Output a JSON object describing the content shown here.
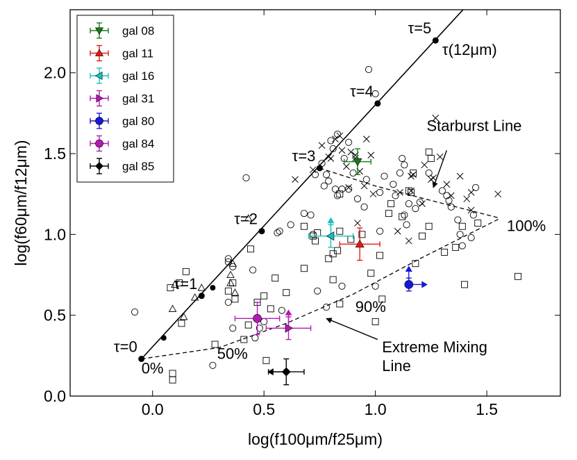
{
  "chart_data": {
    "type": "scatter",
    "xlabel": "log(f100μm/f25μm)",
    "ylabel": "log(f60μm/f12μm)",
    "xlim": [
      -0.37,
      1.83
    ],
    "ylim": [
      0.0,
      2.39
    ],
    "xticks": [
      0.0,
      0.5,
      1.0,
      1.5
    ],
    "xtick_labels": [
      "0.0",
      "0.5",
      "1.0",
      "1.5"
    ],
    "yticks": [
      0.0,
      0.5,
      1.0,
      1.5,
      2.0
    ],
    "ytick_labels": [
      "0.0",
      "0.5",
      "1.0",
      "1.5",
      "2.0"
    ],
    "legend_position": "top-left",
    "tau_line": {
      "name": "τ(12μm)",
      "points": [
        {
          "x": -0.05,
          "y": 0.23,
          "label": "τ=0"
        },
        {
          "x": 0.22,
          "y": 0.62,
          "label": "τ=1"
        },
        {
          "x": 0.49,
          "y": 1.02,
          "label": "τ=2"
        },
        {
          "x": 0.75,
          "y": 1.41,
          "label": "τ=3"
        },
        {
          "x": 1.01,
          "y": 1.81,
          "label": "τ=4"
        },
        {
          "x": 1.27,
          "y": 2.2,
          "label": "τ=5"
        }
      ],
      "extended_end": {
        "x": 1.42,
        "y": 2.43
      },
      "extra_dots": [
        {
          "x": 0.05,
          "y": 0.36
        },
        {
          "x": 0.27,
          "y": 0.67
        }
      ]
    },
    "mixing_curves": {
      "starburst_line": [
        [
          0.75,
          1.41
        ],
        [
          1.0,
          1.3
        ],
        [
          1.25,
          1.21
        ],
        [
          1.56,
          1.1
        ]
      ],
      "extreme_mixing_line": [
        [
          -0.05,
          0.23
        ],
        [
          0.3,
          0.3
        ],
        [
          0.6,
          0.45
        ],
        [
          0.9,
          0.63
        ],
        [
          1.2,
          0.85
        ],
        [
          1.56,
          1.1
        ]
      ]
    },
    "series": [
      {
        "name": "gal 08",
        "color": "#1a7a1a",
        "marker": "triangle-down",
        "x": 0.92,
        "y": 1.45,
        "xerr": 0.06,
        "yerr": 0.08
      },
      {
        "name": "gal 11",
        "color": "#e81818",
        "marker": "triangle-up",
        "x": 0.93,
        "y": 0.94,
        "xerr": 0.09,
        "yerr": 0.1
      },
      {
        "name": "gal 16",
        "color": "#19c0c0",
        "marker": "triangle-left",
        "x": 0.8,
        "y": 0.99,
        "xerr": 0.1,
        "yerr": 0.07,
        "arrows": [
          "up"
        ]
      },
      {
        "name": "gal 31",
        "color": "#b51ab5",
        "marker": "triangle-right",
        "x": 0.61,
        "y": 0.42,
        "xerr": 0.1,
        "yerr": 0.07,
        "arrows": [
          "up"
        ]
      },
      {
        "name": "gal 80",
        "color": "#1818d8",
        "marker": "circle",
        "x": 1.15,
        "y": 0.69,
        "xerr": 0.0,
        "yerr": 0.04,
        "arrows": [
          "up",
          "right"
        ]
      },
      {
        "name": "gal 84",
        "color": "#b51ab5",
        "marker": "circle",
        "x": 0.47,
        "y": 0.48,
        "xerr": 0.1,
        "yerr": 0.1
      },
      {
        "name": "gal 85",
        "color": "#000000",
        "marker": "diamond",
        "x": 0.6,
        "y": 0.15,
        "xerr": 0.08,
        "yerr": 0.08,
        "arrows": [
          "left"
        ]
      }
    ],
    "background_samples": [
      {
        "name": "circles",
        "marker": "open-circle",
        "points": [
          [
            -0.08,
            0.52
          ],
          [
            0.34,
            0.85
          ],
          [
            0.34,
            0.83
          ],
          [
            0.36,
            0.8
          ],
          [
            0.42,
            1.35
          ],
          [
            0.46,
            0.36
          ],
          [
            0.48,
            0.42
          ],
          [
            0.5,
            0.46
          ],
          [
            0.45,
            0.78
          ],
          [
            0.56,
            1.01
          ],
          [
            0.57,
            1.02
          ],
          [
            0.62,
            1.06
          ],
          [
            0.68,
            1.13
          ],
          [
            0.71,
            1.12
          ],
          [
            0.72,
            1.0
          ],
          [
            0.73,
            1.37
          ],
          [
            0.76,
            1.44
          ],
          [
            0.81,
            1.53
          ],
          [
            0.8,
            1.58
          ],
          [
            0.83,
            1.62
          ],
          [
            0.86,
            1.47
          ],
          [
            0.88,
            1.57
          ],
          [
            0.78,
            1.37
          ],
          [
            0.82,
            1.28
          ],
          [
            0.83,
            1.24
          ],
          [
            0.77,
            1.3
          ],
          [
            0.79,
            1.33
          ],
          [
            0.85,
            1.28
          ],
          [
            0.9,
            1.38
          ],
          [
            0.96,
            1.34
          ],
          [
            1.02,
            1.26
          ],
          [
            1.04,
            1.36
          ],
          [
            0.88,
            1.28
          ],
          [
            0.92,
            1.22
          ],
          [
            0.95,
            1.17
          ],
          [
            0.97,
            2.02
          ],
          [
            1.0,
            1.87
          ],
          [
            1.09,
            1.24
          ],
          [
            1.08,
            1.31
          ],
          [
            1.11,
            1.38
          ],
          [
            1.13,
            1.43
          ],
          [
            1.12,
            1.47
          ],
          [
            1.15,
            1.19
          ],
          [
            1.13,
            1.12
          ],
          [
            1.14,
            1.06
          ],
          [
            1.18,
            1.16
          ],
          [
            1.2,
            1.2
          ],
          [
            1.24,
            1.38
          ],
          [
            1.3,
            1.27
          ],
          [
            1.32,
            1.24
          ],
          [
            1.33,
            1.21
          ],
          [
            1.34,
            1.17
          ],
          [
            1.37,
            1.09
          ],
          [
            1.38,
            1.0
          ],
          [
            1.39,
            0.93
          ],
          [
            1.43,
            0.98
          ],
          [
            1.45,
            1.29
          ],
          [
            1.44,
            1.12
          ],
          [
            1.02,
            1.02
          ],
          [
            1.0,
            0.68
          ],
          [
            0.85,
            0.68
          ],
          [
            0.78,
            0.55
          ],
          [
            0.74,
            0.65
          ],
          [
            0.58,
            0.53
          ],
          [
            0.27,
            0.19
          ],
          [
            0.34,
            0.58
          ],
          [
            0.36,
            0.42
          ]
        ]
      },
      {
        "name": "squares",
        "marker": "open-square",
        "points": [
          [
            0.09,
            0.1
          ],
          [
            0.09,
            0.14
          ],
          [
            0.08,
            0.67
          ],
          [
            0.15,
            0.77
          ],
          [
            0.12,
            0.7
          ],
          [
            0.13,
            0.45
          ],
          [
            0.28,
            0.32
          ],
          [
            0.34,
            0.65
          ],
          [
            0.36,
            0.7
          ],
          [
            0.37,
            0.6
          ],
          [
            0.41,
            0.35
          ],
          [
            0.43,
            0.44
          ],
          [
            0.47,
            0.58
          ],
          [
            0.5,
            0.62
          ],
          [
            0.53,
            0.54
          ],
          [
            0.51,
            0.22
          ],
          [
            0.55,
            0.73
          ],
          [
            0.6,
            0.64
          ],
          [
            0.68,
            0.79
          ],
          [
            0.68,
            1.05
          ],
          [
            0.72,
            0.99
          ],
          [
            0.73,
            0.96
          ],
          [
            0.74,
            1.01
          ],
          [
            0.79,
            0.85
          ],
          [
            0.81,
            0.88
          ],
          [
            0.83,
            0.9
          ],
          [
            0.84,
            1.02
          ],
          [
            0.81,
            0.72
          ],
          [
            0.84,
            0.57
          ],
          [
            0.89,
            0.97
          ],
          [
            0.94,
            1.0
          ],
          [
            0.98,
            0.76
          ],
          [
            1.0,
            0.46
          ],
          [
            1.03,
            0.6
          ],
          [
            1.02,
            0.87
          ],
          [
            1.06,
            1.13
          ],
          [
            1.07,
            1.19
          ],
          [
            1.12,
            1.11
          ],
          [
            1.15,
            1.27
          ],
          [
            1.16,
            1.26
          ],
          [
            1.24,
            1.51
          ],
          [
            1.25,
            1.47
          ],
          [
            1.18,
            0.82
          ],
          [
            1.21,
            0.99
          ],
          [
            1.24,
            1.05
          ],
          [
            1.31,
            0.89
          ],
          [
            1.36,
            0.92
          ],
          [
            1.4,
            0.69
          ],
          [
            1.46,
            1.07
          ],
          [
            1.39,
            1.05
          ],
          [
            1.64,
            0.74
          ],
          [
            1.17,
            1.38
          ],
          [
            0.44,
            0.91
          ],
          [
            0.84,
            1.25
          ]
        ]
      },
      {
        "name": "triangles",
        "marker": "open-triangle",
        "points": [
          [
            0.09,
            0.54
          ],
          [
            0.1,
            0.69
          ],
          [
            0.14,
            0.49
          ],
          [
            0.19,
            0.61
          ],
          [
            0.35,
            0.75
          ],
          [
            0.35,
            0.7
          ],
          [
            0.37,
            0.64
          ],
          [
            0.43,
            1.1
          ],
          [
            0.36,
            0.82
          ],
          [
            0.22,
            0.67
          ]
        ]
      },
      {
        "name": "crosses",
        "marker": "cross",
        "points": [
          [
            0.64,
            1.34
          ],
          [
            0.79,
            1.48
          ],
          [
            0.82,
            1.59
          ],
          [
            0.84,
            1.61
          ],
          [
            0.8,
            1.47
          ],
          [
            0.76,
            1.55
          ],
          [
            0.72,
            1.4
          ],
          [
            0.85,
            1.52
          ],
          [
            0.87,
            1.42
          ],
          [
            0.88,
            1.29
          ],
          [
            0.89,
            1.51
          ],
          [
            0.91,
            1.49
          ],
          [
            0.91,
            1.47
          ],
          [
            0.96,
            1.59
          ],
          [
            0.95,
            1.3
          ],
          [
            0.98,
            1.49
          ],
          [
            0.99,
            1.25
          ],
          [
            0.93,
            1.39
          ],
          [
            1.11,
            1.26
          ],
          [
            1.16,
            1.27
          ],
          [
            1.16,
            1.36
          ],
          [
            1.17,
            1.37
          ],
          [
            1.21,
            1.19
          ],
          [
            1.22,
            1.43
          ],
          [
            1.26,
            1.35
          ],
          [
            1.25,
            1.34
          ],
          [
            1.27,
            1.72
          ],
          [
            1.29,
            1.48
          ],
          [
            1.32,
            1.31
          ],
          [
            1.34,
            1.24
          ],
          [
            1.38,
            1.36
          ],
          [
            1.41,
            1.22
          ],
          [
            1.43,
            1.26
          ],
          [
            1.55,
            1.25
          ],
          [
            1.15,
            0.96
          ],
          [
            1.1,
            1.02
          ],
          [
            0.92,
            1.07
          ],
          [
            1.43,
            1.15
          ]
        ]
      }
    ],
    "annotations": [
      {
        "id": "tau-label",
        "text": "τ(12μm)",
        "x": 1.3,
        "y": 2.11,
        "anchor": "start"
      },
      {
        "id": "pct-0",
        "text": "0%",
        "x": -0.05,
        "y": 0.14,
        "anchor": "start"
      },
      {
        "id": "pct-50",
        "text": "50%",
        "x": 0.29,
        "y": 0.23,
        "anchor": "start"
      },
      {
        "id": "pct-90",
        "text": "90%",
        "x": 0.91,
        "y": 0.52,
        "anchor": "start"
      },
      {
        "id": "pct-100",
        "text": "100%",
        "x": 1.59,
        "y": 1.02,
        "anchor": "start"
      }
    ],
    "callouts": [
      {
        "id": "starburst",
        "lines": [
          "Starburst Line"
        ],
        "x": 1.23,
        "y": 1.64,
        "arrow_from": [
          1.32,
          1.52
        ],
        "arrow_to": [
          1.26,
          1.29
        ]
      },
      {
        "id": "mixing",
        "lines": [
          "Extreme Mixing",
          "Line"
        ],
        "x": 1.03,
        "y": 0.27,
        "arrow_from": [
          1.01,
          0.35
        ],
        "arrow_to": [
          0.78,
          0.48
        ]
      }
    ]
  }
}
